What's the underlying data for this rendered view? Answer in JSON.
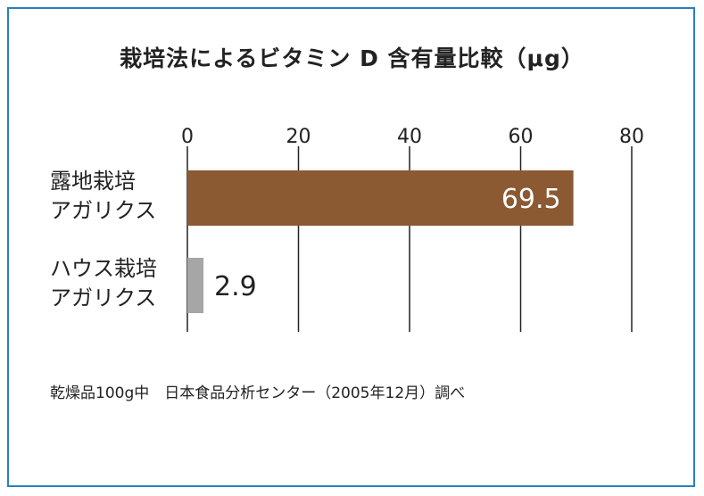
{
  "chart_data": {
    "type": "bar",
    "orientation": "horizontal",
    "title": "栽培法によるビタミン D 含有量比較（μg）",
    "categories": [
      [
        "露地栽培",
        "アガリクス"
      ],
      [
        "ハウス栽培",
        "アガリクス"
      ]
    ],
    "values": [
      69.5,
      2.9
    ],
    "value_labels": [
      "69.5",
      "2.9"
    ],
    "xlim": [
      0,
      80
    ],
    "x_ticks": [
      "0",
      "20",
      "40",
      "60",
      "80"
    ],
    "x_tick_values": [
      0,
      20,
      40,
      60,
      80
    ],
    "grid": true,
    "axis_position": "top",
    "colors": [
      "#8b5a32",
      "#a6a6a6"
    ],
    "value_label_colors": [
      "#ffffff",
      "#222222"
    ],
    "value_label_placement": [
      "inside-end",
      "outside-end"
    ]
  },
  "footnote": "乾燥品100g中　日本食品分析センター（2005年12月）調べ",
  "colors": {
    "frame": "#2a7fc0",
    "grid": "#222222"
  }
}
